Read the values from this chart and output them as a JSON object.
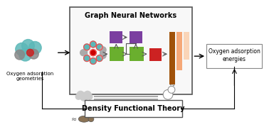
{
  "title_gnn": "Graph Neural Networks",
  "title_dft": "Density Functional Theory",
  "label_input": "Oxygen adsorption\ngeometries",
  "label_output": "Oxygen adsorption\nenergies",
  "color_purple": "#7B3FA0",
  "color_green": "#6AAF2E",
  "color_red": "#CC2222",
  "color_brown": "#A0520A",
  "color_orange_light": "#F5A878",
  "color_orange_pale": "#FAD5B8",
  "color_teal": "#5CB8B8",
  "color_grey_node": "#AAAAAA",
  "color_cloud": "#CCCCCC",
  "bg_color": "#FFFFFF"
}
